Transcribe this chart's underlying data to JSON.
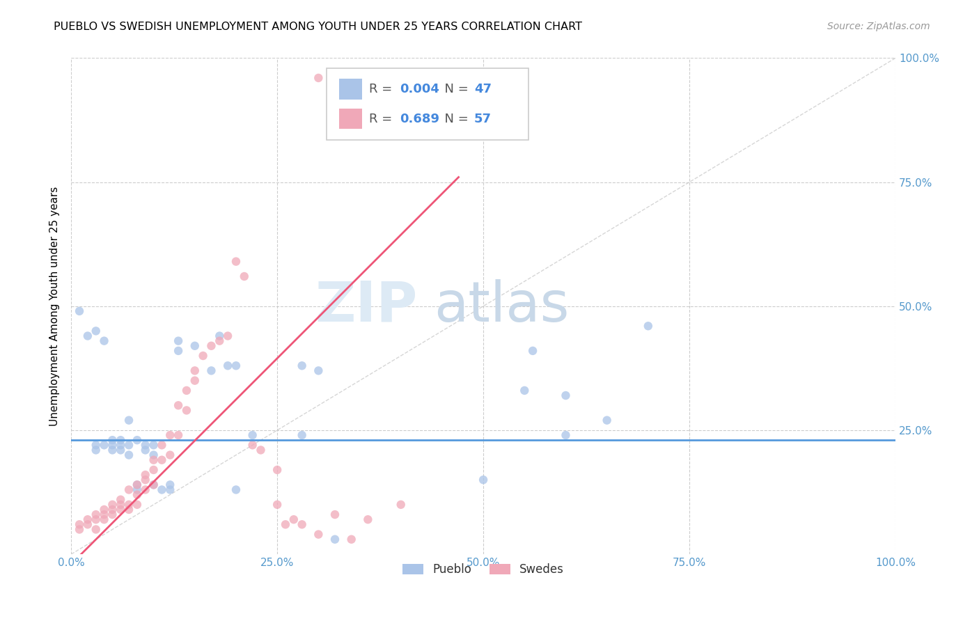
{
  "title": "PUEBLO VS SWEDISH UNEMPLOYMENT AMONG YOUTH UNDER 25 YEARS CORRELATION CHART",
  "source": "Source: ZipAtlas.com",
  "ylabel": "Unemployment Among Youth under 25 years",
  "xlim": [
    0,
    1.0
  ],
  "ylim": [
    0,
    1.0
  ],
  "xticks": [
    0.0,
    0.25,
    0.5,
    0.75,
    1.0
  ],
  "yticks": [
    0.25,
    0.5,
    0.75,
    1.0
  ],
  "xticklabels": [
    "0.0%",
    "25.0%",
    "50.0%",
    "75.0%",
    "100.0%"
  ],
  "yticklabels": [
    "25.0%",
    "50.0%",
    "75.0%",
    "100.0%"
  ],
  "pueblo_color": "#aac4e8",
  "swedes_color": "#f0a8b8",
  "pueblo_line_color": "#5599dd",
  "swedes_line_color": "#ee5577",
  "diagonal_color": "#cccccc",
  "pueblo_R": 0.004,
  "pueblo_N": 47,
  "swedes_R": 0.689,
  "swedes_N": 57,
  "pueblo_line_slope": 0.0,
  "pueblo_line_intercept": 0.23,
  "swedes_line_x0": 0.0,
  "swedes_line_y0": -0.02,
  "swedes_line_x1": 0.47,
  "swedes_line_y1": 0.76,
  "pueblo_points": [
    [
      0.01,
      0.49
    ],
    [
      0.02,
      0.44
    ],
    [
      0.03,
      0.45
    ],
    [
      0.04,
      0.43
    ],
    [
      0.05,
      0.23
    ],
    [
      0.05,
      0.22
    ],
    [
      0.06,
      0.22
    ],
    [
      0.06,
      0.21
    ],
    [
      0.07,
      0.27
    ],
    [
      0.07,
      0.2
    ],
    [
      0.08,
      0.14
    ],
    [
      0.08,
      0.13
    ],
    [
      0.09,
      0.21
    ],
    [
      0.09,
      0.22
    ],
    [
      0.1,
      0.2
    ],
    [
      0.1,
      0.14
    ],
    [
      0.1,
      0.22
    ],
    [
      0.11,
      0.13
    ],
    [
      0.12,
      0.14
    ],
    [
      0.12,
      0.13
    ],
    [
      0.03,
      0.22
    ],
    [
      0.03,
      0.21
    ],
    [
      0.04,
      0.22
    ],
    [
      0.05,
      0.21
    ],
    [
      0.06,
      0.23
    ],
    [
      0.07,
      0.22
    ],
    [
      0.08,
      0.23
    ],
    [
      0.13,
      0.41
    ],
    [
      0.13,
      0.43
    ],
    [
      0.15,
      0.42
    ],
    [
      0.17,
      0.37
    ],
    [
      0.18,
      0.44
    ],
    [
      0.19,
      0.38
    ],
    [
      0.2,
      0.38
    ],
    [
      0.2,
      0.13
    ],
    [
      0.22,
      0.24
    ],
    [
      0.28,
      0.24
    ],
    [
      0.28,
      0.38
    ],
    [
      0.3,
      0.37
    ],
    [
      0.32,
      0.03
    ],
    [
      0.5,
      0.15
    ],
    [
      0.55,
      0.33
    ],
    [
      0.56,
      0.41
    ],
    [
      0.6,
      0.32
    ],
    [
      0.6,
      0.24
    ],
    [
      0.65,
      0.27
    ],
    [
      0.7,
      0.46
    ]
  ],
  "swedes_points": [
    [
      0.01,
      0.05
    ],
    [
      0.01,
      0.06
    ],
    [
      0.02,
      0.06
    ],
    [
      0.02,
      0.07
    ],
    [
      0.03,
      0.05
    ],
    [
      0.03,
      0.07
    ],
    [
      0.03,
      0.08
    ],
    [
      0.04,
      0.07
    ],
    [
      0.04,
      0.08
    ],
    [
      0.04,
      0.09
    ],
    [
      0.05,
      0.08
    ],
    [
      0.05,
      0.09
    ],
    [
      0.05,
      0.1
    ],
    [
      0.06,
      0.09
    ],
    [
      0.06,
      0.1
    ],
    [
      0.06,
      0.11
    ],
    [
      0.07,
      0.09
    ],
    [
      0.07,
      0.1
    ],
    [
      0.07,
      0.13
    ],
    [
      0.08,
      0.1
    ],
    [
      0.08,
      0.12
    ],
    [
      0.08,
      0.14
    ],
    [
      0.09,
      0.13
    ],
    [
      0.09,
      0.15
    ],
    [
      0.09,
      0.16
    ],
    [
      0.1,
      0.14
    ],
    [
      0.1,
      0.17
    ],
    [
      0.1,
      0.19
    ],
    [
      0.11,
      0.19
    ],
    [
      0.11,
      0.22
    ],
    [
      0.12,
      0.2
    ],
    [
      0.12,
      0.24
    ],
    [
      0.13,
      0.24
    ],
    [
      0.13,
      0.3
    ],
    [
      0.14,
      0.29
    ],
    [
      0.14,
      0.33
    ],
    [
      0.15,
      0.35
    ],
    [
      0.15,
      0.37
    ],
    [
      0.16,
      0.4
    ],
    [
      0.17,
      0.42
    ],
    [
      0.18,
      0.43
    ],
    [
      0.19,
      0.44
    ],
    [
      0.2,
      0.59
    ],
    [
      0.21,
      0.56
    ],
    [
      0.22,
      0.22
    ],
    [
      0.23,
      0.21
    ],
    [
      0.25,
      0.17
    ],
    [
      0.25,
      0.1
    ],
    [
      0.26,
      0.06
    ],
    [
      0.27,
      0.07
    ],
    [
      0.28,
      0.06
    ],
    [
      0.3,
      0.04
    ],
    [
      0.3,
      0.96
    ],
    [
      0.32,
      0.08
    ],
    [
      0.34,
      0.03
    ],
    [
      0.36,
      0.07
    ],
    [
      0.4,
      0.1
    ]
  ],
  "watermark_zip": "ZIP",
  "watermark_atlas": "atlas",
  "watermark_color": "#ddeaf5",
  "marker_size": 80,
  "alpha": 0.75,
  "tick_color": "#5599cc",
  "right_tick_color": "#5599cc"
}
